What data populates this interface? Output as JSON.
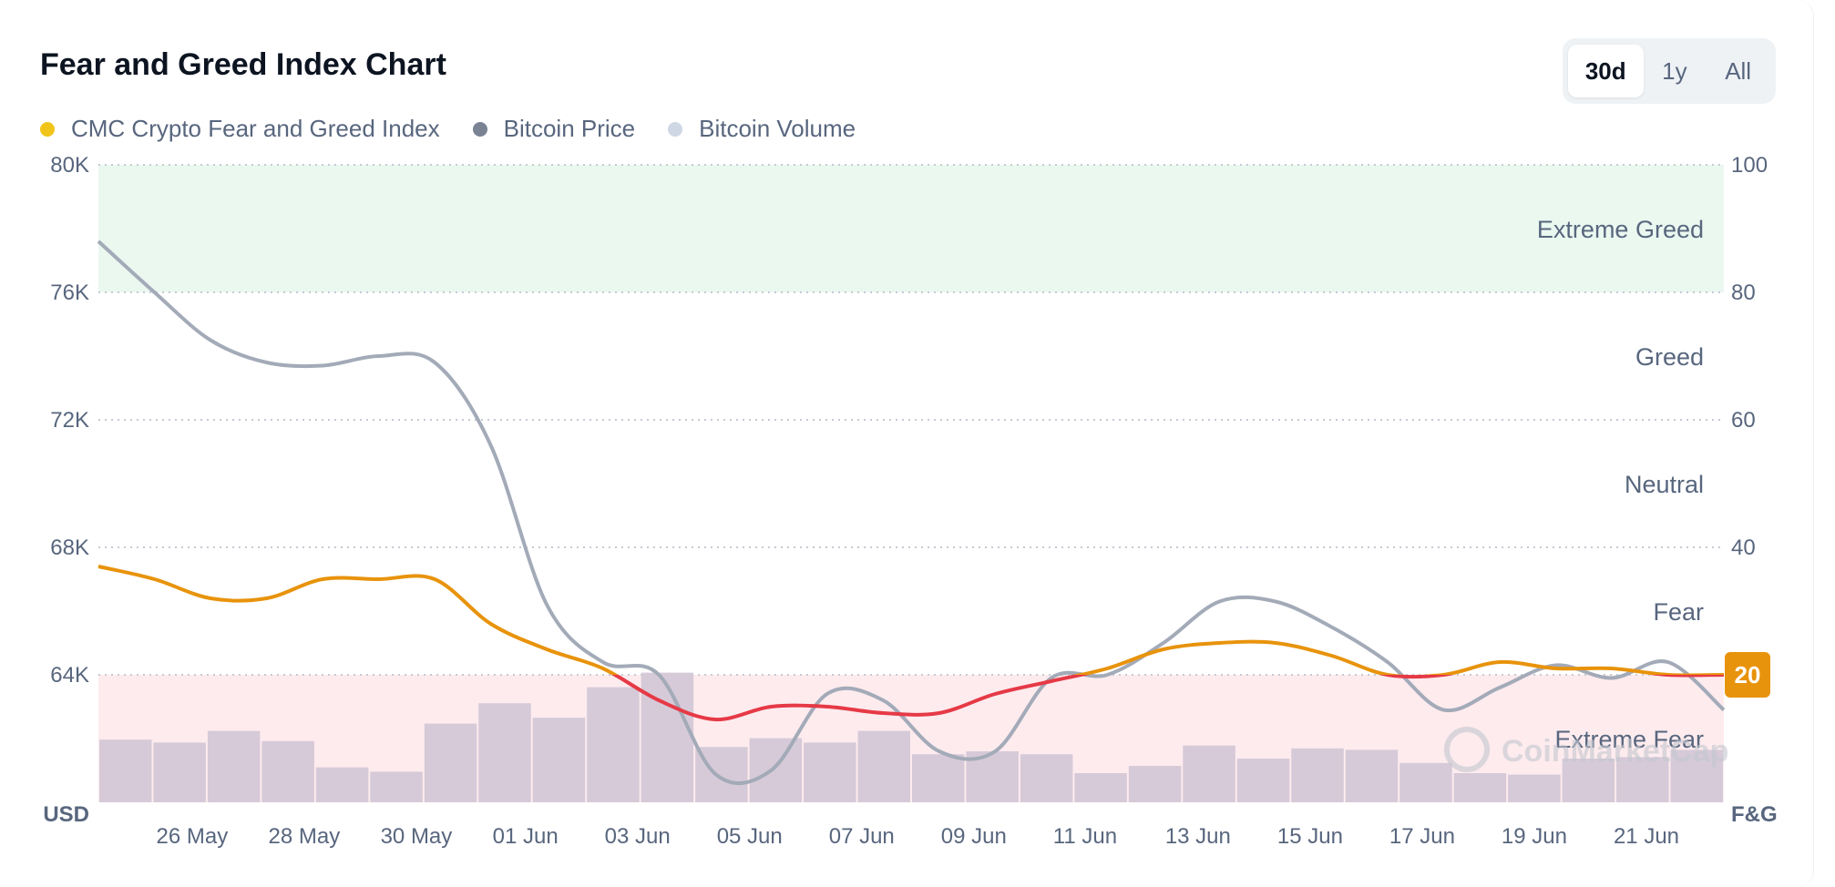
{
  "header": {
    "title": "Fear and Greed Index Chart",
    "tabs": [
      {
        "label": "30d",
        "active": true
      },
      {
        "label": "1y",
        "active": false
      },
      {
        "label": "All",
        "active": false
      }
    ]
  },
  "legend": [
    {
      "label": "CMC Crypto Fear and Greed Index",
      "color": "#f0c419"
    },
    {
      "label": "Bitcoin Price",
      "color": "#7a8394"
    },
    {
      "label": "Bitcoin Volume",
      "color": "#cfd6e4"
    }
  ],
  "watermark": "CoinMarketCap",
  "chart_data": {
    "type": "line",
    "x": [
      "25 May",
      "26 May",
      "27 May",
      "28 May",
      "29 May",
      "30 May",
      "31 May",
      "01 Jun",
      "02 Jun",
      "03 Jun",
      "04 Jun",
      "05 Jun",
      "06 Jun",
      "07 Jun",
      "08 Jun",
      "09 Jun",
      "10 Jun",
      "11 Jun",
      "12 Jun",
      "13 Jun",
      "14 Jun",
      "15 Jun",
      "16 Jun",
      "17 Jun",
      "18 Jun",
      "19 Jun",
      "20 Jun",
      "21 Jun",
      "22 Jun",
      "23 Jun"
    ],
    "x_tick_labels": [
      "26 May",
      "28 May",
      "30 May",
      "01 Jun",
      "03 Jun",
      "05 Jun",
      "07 Jun",
      "09 Jun",
      "11 Jun",
      "13 Jun",
      "15 Jun",
      "17 Jun",
      "19 Jun",
      "21 Jun"
    ],
    "left_axis": {
      "unit": "USD",
      "range": [
        60000,
        80000
      ],
      "ticks": [
        "80K",
        "76K",
        "72K",
        "68K",
        "64K"
      ],
      "tick_values": [
        80000,
        76000,
        72000,
        68000,
        64000
      ]
    },
    "right_axis": {
      "unit": "F&G",
      "range": [
        0,
        100
      ],
      "ticks": [
        "100",
        "80",
        "60",
        "40",
        "20"
      ],
      "tick_values": [
        100,
        80,
        60,
        40,
        20
      ]
    },
    "zones": [
      {
        "label": "Extreme Greed",
        "from": 80,
        "to": 100,
        "color": "#eaf8f0"
      },
      {
        "label": "Greed",
        "from": 60,
        "to": 80
      },
      {
        "label": "Neutral",
        "from": 40,
        "to": 60
      },
      {
        "label": "Fear",
        "from": 20,
        "to": 40
      },
      {
        "label": "Extreme Fear",
        "from": 0,
        "to": 20,
        "color": "#fdebee"
      }
    ],
    "series": [
      {
        "name": "CMC Crypto Fear and Greed Index",
        "axis": "right",
        "values": [
          37,
          35,
          32,
          32,
          35,
          35,
          35,
          28,
          24,
          21,
          16,
          13,
          15,
          15,
          14,
          14,
          17,
          19,
          21,
          24,
          25,
          25,
          23,
          20,
          20,
          22,
          21,
          21,
          20,
          20
        ],
        "color_above_20": "#e8930c",
        "color_below_20": "#e63946"
      },
      {
        "name": "Bitcoin Price",
        "axis": "left",
        "color": "#a3aab8",
        "values": [
          77600,
          76000,
          74500,
          73800,
          73700,
          74000,
          73800,
          71200,
          66200,
          64400,
          64000,
          60900,
          61000,
          63400,
          63200,
          61600,
          61600,
          63900,
          64000,
          65000,
          66300,
          66300,
          65500,
          64400,
          62900,
          63600,
          64300,
          63900,
          64400,
          62900
        ]
      },
      {
        "name": "Bitcoin Volume",
        "type": "bar",
        "color": "#d4c8d6",
        "values_relative": [
          0.43,
          0.41,
          0.49,
          0.42,
          0.24,
          0.21,
          0.54,
          0.68,
          0.58,
          0.79,
          0.89,
          0.38,
          0.44,
          0.41,
          0.49,
          0.33,
          0.35,
          0.33,
          0.2,
          0.25,
          0.39,
          0.3,
          0.37,
          0.36,
          0.27,
          0.2,
          0.19,
          0.3,
          0.31,
          0.36
        ]
      }
    ],
    "current_value": "20",
    "current_badge_color": "#e8930c",
    "grid": true
  }
}
